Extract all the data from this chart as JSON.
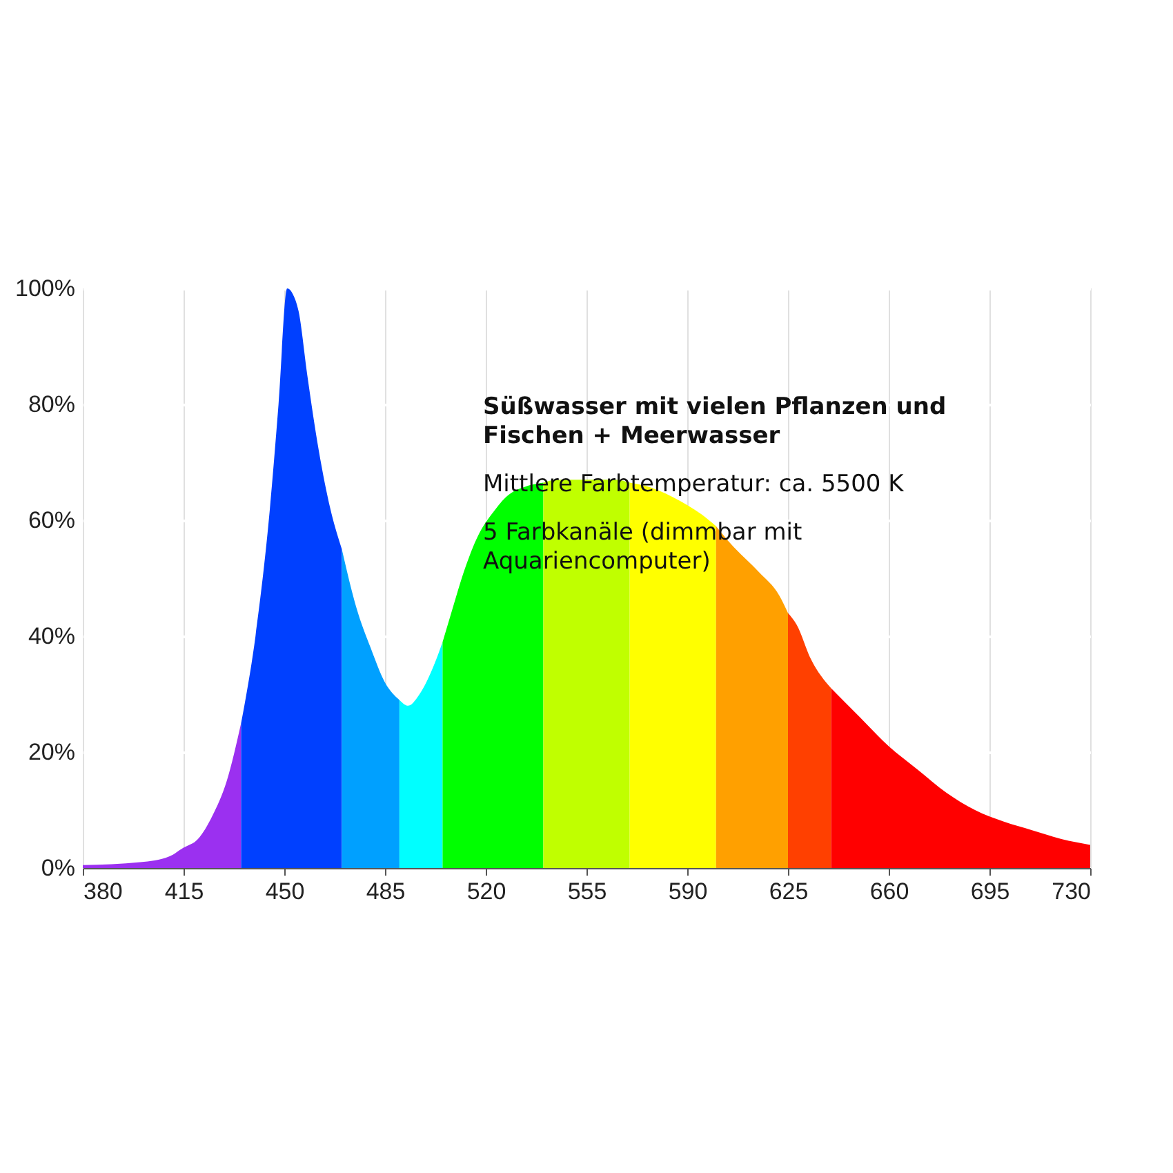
{
  "chart_data": {
    "type": "area",
    "annotations": [
      "Süßwasser mit vielen Pflanzen und Fischen + Meerwasser",
      "Mittlere Farbtemperatur: ca. 5500 K",
      "5 Farbkanäle (dimmbar mit Aquariencomputer)"
    ],
    "xlim": [
      380,
      730
    ],
    "xticks": [
      380,
      415,
      450,
      485,
      520,
      555,
      590,
      625,
      660,
      695,
      730
    ],
    "ylim": [
      0,
      100
    ],
    "yticks": [
      {
        "value": 0,
        "label": "0%"
      },
      {
        "value": 20,
        "label": "20%"
      },
      {
        "value": 40,
        "label": "40%"
      },
      {
        "value": 60,
        "label": "60%"
      },
      {
        "value": 80,
        "label": "80%"
      },
      {
        "value": 100,
        "label": "100%"
      }
    ],
    "grid": true,
    "series": [
      {
        "color": "#9b30f0",
        "x": [
          380,
          400,
          410,
          415,
          420,
          425,
          430,
          435
        ],
        "values": [
          0.5,
          1,
          2,
          3.5,
          5,
          9,
          15,
          25
        ]
      },
      {
        "color": "#0040ff",
        "x": [
          435,
          440,
          445,
          448,
          451,
          453,
          455,
          458,
          462,
          466,
          470
        ],
        "values": [
          25,
          40,
          62,
          80,
          100,
          99,
          96,
          85,
          72,
          62,
          55
        ]
      },
      {
        "color": "#00a0ff",
        "x": [
          470,
          475,
          480,
          485,
          490
        ],
        "values": [
          55,
          45,
          38,
          32,
          29
        ]
      },
      {
        "color": "#00ffff",
        "x": [
          490,
          493,
          497,
          502,
          505
        ],
        "values": [
          29,
          28,
          30,
          35,
          39
        ]
      },
      {
        "color": "#00ff00",
        "x": [
          505,
          508,
          513,
          518,
          522,
          527,
          535,
          540
        ],
        "values": [
          39,
          44,
          52,
          58,
          61,
          64,
          66,
          66.5
        ]
      },
      {
        "color": "#c0ff00",
        "x": [
          540,
          545,
          555,
          565,
          570
        ],
        "values": [
          66.5,
          67,
          67,
          67,
          66.5
        ]
      },
      {
        "color": "#ffff00",
        "x": [
          570,
          575,
          585,
          595,
          600
        ],
        "values": [
          66.5,
          66,
          64,
          61,
          59
        ]
      },
      {
        "color": "#ffa000",
        "x": [
          600,
          605,
          615,
          622,
          625
        ],
        "values": [
          59,
          56,
          51,
          47,
          44
        ]
      },
      {
        "color": "#ff4000",
        "x": [
          625,
          628,
          633,
          640
        ],
        "values": [
          44,
          42,
          36,
          31
        ]
      },
      {
        "color": "#ff0000",
        "x": [
          640,
          650,
          660,
          670,
          680,
          690,
          700,
          710,
          720,
          730
        ],
        "values": [
          31,
          26,
          21,
          17,
          13,
          10,
          8,
          6.5,
          5,
          4
        ]
      }
    ]
  }
}
